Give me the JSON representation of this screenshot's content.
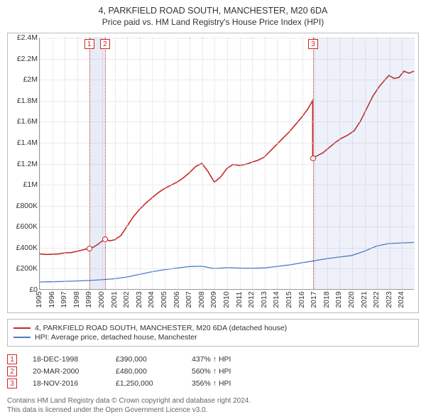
{
  "title": "4, PARKFIELD ROAD SOUTH, MANCHESTER, M20 6DA",
  "subtitle": "Price paid vs. HM Land Registry's House Price Index (HPI)",
  "chart": {
    "type": "line",
    "background": "#ffffff",
    "grid_color": "#d7d7d7",
    "x": {
      "min": 1995,
      "max": 2025,
      "ticks": [
        1995,
        1996,
        1997,
        1998,
        1999,
        2000,
        2001,
        2002,
        2003,
        2004,
        2005,
        2006,
        2007,
        2008,
        2009,
        2010,
        2011,
        2012,
        2013,
        2014,
        2015,
        2016,
        2017,
        2018,
        2019,
        2020,
        2021,
        2022,
        2023,
        2024
      ]
    },
    "y": {
      "min": 0,
      "max": 2400000,
      "ticks": [
        0,
        200000,
        400000,
        600000,
        800000,
        1000000,
        1200000,
        1400000,
        1600000,
        1800000,
        2000000,
        2200000,
        2400000
      ],
      "labels": [
        "£0",
        "£200K",
        "£400K",
        "£600K",
        "£800K",
        "£1M",
        "£1.2M",
        "£1.4M",
        "£1.6M",
        "£1.8M",
        "£2M",
        "£2.2M",
        "£2.4M"
      ]
    },
    "series": [
      {
        "name": "price_paid",
        "label": "4, PARKFIELD ROAD SOUTH, MANCHESTER, M20 6DA (detached house)",
        "color": "#c62828",
        "width": 1.6,
        "points": [
          [
            1995.0,
            335000
          ],
          [
            1995.5,
            330000
          ],
          [
            1996.0,
            332000
          ],
          [
            1996.5,
            335000
          ],
          [
            1997.0,
            345000
          ],
          [
            1997.5,
            348000
          ],
          [
            1998.0,
            360000
          ],
          [
            1998.5,
            375000
          ],
          [
            1998.96,
            390000
          ],
          [
            1999.3,
            400000
          ],
          [
            1999.7,
            430000
          ],
          [
            2000.22,
            480000
          ],
          [
            2000.6,
            460000
          ],
          [
            2001.0,
            470000
          ],
          [
            2001.5,
            510000
          ],
          [
            2002.0,
            600000
          ],
          [
            2002.5,
            690000
          ],
          [
            2003.0,
            760000
          ],
          [
            2003.5,
            820000
          ],
          [
            2004.0,
            870000
          ],
          [
            2004.5,
            920000
          ],
          [
            2005.0,
            960000
          ],
          [
            2005.5,
            990000
          ],
          [
            2006.0,
            1020000
          ],
          [
            2006.5,
            1060000
          ],
          [
            2007.0,
            1110000
          ],
          [
            2007.5,
            1170000
          ],
          [
            2008.0,
            1200000
          ],
          [
            2008.5,
            1120000
          ],
          [
            2009.0,
            1020000
          ],
          [
            2009.5,
            1070000
          ],
          [
            2010.0,
            1150000
          ],
          [
            2010.5,
            1190000
          ],
          [
            2011.0,
            1180000
          ],
          [
            2011.5,
            1190000
          ],
          [
            2012.0,
            1210000
          ],
          [
            2012.5,
            1230000
          ],
          [
            2013.0,
            1260000
          ],
          [
            2013.5,
            1320000
          ],
          [
            2014.0,
            1380000
          ],
          [
            2014.5,
            1440000
          ],
          [
            2015.0,
            1500000
          ],
          [
            2015.5,
            1570000
          ],
          [
            2016.0,
            1640000
          ],
          [
            2016.5,
            1720000
          ],
          [
            2016.88,
            1800000
          ],
          [
            2016.88,
            1250000
          ],
          [
            2017.2,
            1270000
          ],
          [
            2017.7,
            1300000
          ],
          [
            2018.2,
            1350000
          ],
          [
            2018.7,
            1400000
          ],
          [
            2019.2,
            1440000
          ],
          [
            2019.7,
            1470000
          ],
          [
            2020.2,
            1510000
          ],
          [
            2020.7,
            1600000
          ],
          [
            2021.2,
            1720000
          ],
          [
            2021.7,
            1840000
          ],
          [
            2022.2,
            1930000
          ],
          [
            2022.7,
            2000000
          ],
          [
            2023.0,
            2040000
          ],
          [
            2023.4,
            2010000
          ],
          [
            2023.8,
            2020000
          ],
          [
            2024.2,
            2080000
          ],
          [
            2024.6,
            2060000
          ],
          [
            2025.0,
            2080000
          ]
        ]
      },
      {
        "name": "hpi",
        "label": "HPI: Average price, detached house, Manchester",
        "color": "#4a7ac7",
        "width": 1.3,
        "points": [
          [
            1995.0,
            68000
          ],
          [
            1996.0,
            70000
          ],
          [
            1997.0,
            73000
          ],
          [
            1998.0,
            77000
          ],
          [
            1999.0,
            82000
          ],
          [
            2000.0,
            89000
          ],
          [
            2001.0,
            98000
          ],
          [
            2002.0,
            115000
          ],
          [
            2003.0,
            140000
          ],
          [
            2004.0,
            165000
          ],
          [
            2005.0,
            185000
          ],
          [
            2006.0,
            200000
          ],
          [
            2007.0,
            215000
          ],
          [
            2008.0,
            218000
          ],
          [
            2009.0,
            195000
          ],
          [
            2010.0,
            205000
          ],
          [
            2011.0,
            200000
          ],
          [
            2012.0,
            198000
          ],
          [
            2013.0,
            202000
          ],
          [
            2014.0,
            215000
          ],
          [
            2015.0,
            230000
          ],
          [
            2016.0,
            250000
          ],
          [
            2017.0,
            270000
          ],
          [
            2018.0,
            290000
          ],
          [
            2019.0,
            305000
          ],
          [
            2020.0,
            320000
          ],
          [
            2021.0,
            360000
          ],
          [
            2022.0,
            410000
          ],
          [
            2023.0,
            435000
          ],
          [
            2024.0,
            440000
          ],
          [
            2025.0,
            445000
          ]
        ]
      }
    ],
    "highlight_bands": [
      {
        "from": 1998.96,
        "to": 2000.22,
        "color": "rgba(100,130,200,0.15)"
      },
      {
        "from": 2016.88,
        "to": 2025.0,
        "color": "rgba(100,130,200,0.11)"
      }
    ],
    "markers": [
      {
        "n": "1",
        "x": 1998.96,
        "y": 390000
      },
      {
        "n": "2",
        "x": 2000.22,
        "y": 480000
      },
      {
        "n": "3",
        "x": 2016.88,
        "y": 1250000
      }
    ]
  },
  "legend": [
    {
      "color": "#c62828",
      "label": "4, PARKFIELD ROAD SOUTH, MANCHESTER, M20 6DA (detached house)"
    },
    {
      "color": "#4a7ac7",
      "label": "HPI: Average price, detached house, Manchester"
    }
  ],
  "sales": [
    {
      "n": "1",
      "date": "18-DEC-1998",
      "price": "£390,000",
      "pct": "437% ↑ HPI"
    },
    {
      "n": "2",
      "date": "20-MAR-2000",
      "price": "£480,000",
      "pct": "560% ↑ HPI"
    },
    {
      "n": "3",
      "date": "18-NOV-2016",
      "price": "£1,250,000",
      "pct": "356% ↑ HPI"
    }
  ],
  "footer": {
    "line1": "Contains HM Land Registry data © Crown copyright and database right 2024.",
    "line2": "This data is licensed under the Open Government Licence v3.0."
  }
}
